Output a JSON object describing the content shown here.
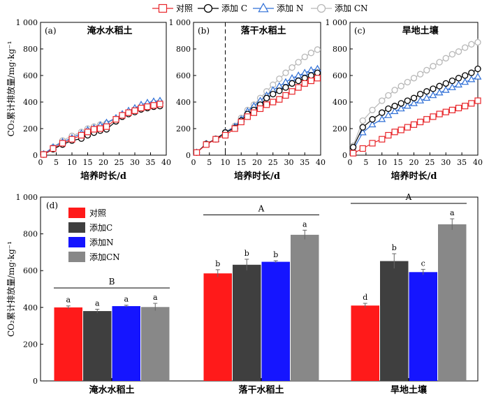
{
  "legend": {
    "entries": [
      {
        "label": "对照",
        "marker": "square",
        "color": "#e8262a"
      },
      {
        "label": "添加 C",
        "marker": "circle",
        "color": "#000000"
      },
      {
        "label": "添加 N",
        "marker": "triangle",
        "color": "#2f6fd6"
      },
      {
        "label": "添加 CN",
        "marker": "circle",
        "color": "#b8b8b8"
      }
    ]
  },
  "chart_data": [
    {
      "type": "line",
      "panel": "(a)",
      "title": "淹水水稻土",
      "xlabel": "培养时长/d",
      "ylabel": "CO₂累计排放量/mg·kg⁻¹",
      "xlim": [
        0,
        40
      ],
      "ylim": [
        0,
        1000
      ],
      "xticks": [
        "0",
        "5",
        "10",
        "15",
        "20",
        "25",
        "30",
        "35",
        "40"
      ],
      "yticks": [
        "0",
        "200",
        "400",
        "600",
        "800",
        "1 000"
      ],
      "x": [
        1,
        4,
        7,
        10,
        13,
        15,
        17,
        19,
        21,
        24,
        26,
        28,
        30,
        32,
        34,
        36,
        38
      ],
      "series": [
        {
          "name": "对照",
          "values": [
            5,
            50,
            90,
            120,
            150,
            175,
            195,
            200,
            215,
            270,
            300,
            320,
            335,
            355,
            365,
            375,
            385
          ]
        },
        {
          "name": "添加 C",
          "values": [
            5,
            45,
            80,
            110,
            125,
            150,
            170,
            185,
            195,
            255,
            290,
            310,
            325,
            345,
            355,
            365,
            370
          ]
        },
        {
          "name": "添加 N",
          "values": [
            8,
            60,
            100,
            130,
            165,
            190,
            205,
            225,
            245,
            280,
            310,
            335,
            355,
            380,
            395,
            405,
            410
          ]
        },
        {
          "name": "添加 CN",
          "values": [
            10,
            60,
            110,
            145,
            175,
            200,
            215,
            230,
            240,
            275,
            300,
            320,
            345,
            365,
            380,
            395,
            400
          ]
        }
      ],
      "grid": false
    },
    {
      "type": "line",
      "panel": "(b)",
      "title": "落干水稻土",
      "xlabel": "培养时长/d",
      "xlim": [
        0,
        40
      ],
      "ylim": [
        0,
        1000
      ],
      "xticks": [
        "0",
        "5",
        "10",
        "15",
        "20",
        "25",
        "30",
        "35",
        "40"
      ],
      "yticks": [
        "0",
        "200",
        "400",
        "600",
        "800",
        "1 000"
      ],
      "vline_x": 10,
      "x": [
        1,
        4,
        7,
        10,
        13,
        15,
        17,
        19,
        21,
        23,
        25,
        27,
        29,
        31,
        33,
        35,
        37,
        39
      ],
      "series": [
        {
          "name": "对照",
          "values": [
            20,
            80,
            120,
            150,
            200,
            250,
            290,
            320,
            350,
            380,
            400,
            420,
            450,
            480,
            510,
            540,
            560,
            580
          ]
        },
        {
          "name": "添加 C",
          "values": [
            20,
            85,
            120,
            170,
            205,
            260,
            310,
            340,
            380,
            430,
            460,
            485,
            510,
            540,
            560,
            580,
            600,
            620
          ]
        },
        {
          "name": "添加 N",
          "values": [
            20,
            85,
            120,
            170,
            215,
            270,
            330,
            370,
            410,
            450,
            490,
            520,
            550,
            580,
            600,
            620,
            640,
            650
          ]
        },
        {
          "name": "添加 CN",
          "values": [
            20,
            85,
            125,
            175,
            220,
            280,
            340,
            380,
            430,
            480,
            530,
            575,
            620,
            660,
            700,
            740,
            770,
            795
          ]
        }
      ],
      "grid": false
    },
    {
      "type": "line",
      "panel": "(c)",
      "title": "旱地土壤",
      "xlabel": "培养时长/d",
      "xlim": [
        0,
        40
      ],
      "ylim": [
        0,
        1000
      ],
      "xticks": [
        "0",
        "5",
        "10",
        "15",
        "20",
        "25",
        "30",
        "35",
        "40"
      ],
      "yticks": [
        "0",
        "200",
        "400",
        "600",
        "800",
        "1 000"
      ],
      "x": [
        1,
        4,
        7,
        10,
        12,
        14,
        16,
        18,
        20,
        22,
        24,
        26,
        28,
        30,
        32,
        34,
        36,
        38,
        40
      ],
      "series": [
        {
          "name": "对照",
          "values": [
            15,
            50,
            90,
            120,
            150,
            175,
            190,
            210,
            230,
            250,
            270,
            290,
            310,
            325,
            340,
            355,
            370,
            390,
            410
          ]
        },
        {
          "name": "添加 C",
          "values": [
            60,
            210,
            270,
            320,
            350,
            370,
            390,
            410,
            430,
            460,
            480,
            500,
            520,
            540,
            560,
            580,
            600,
            620,
            650
          ]
        },
        {
          "name": "添加 N",
          "values": [
            40,
            170,
            230,
            270,
            300,
            330,
            350,
            370,
            390,
            410,
            430,
            450,
            470,
            490,
            510,
            530,
            550,
            570,
            590
          ]
        },
        {
          "name": "添加 CN",
          "values": [
            70,
            260,
            340,
            410,
            450,
            490,
            520,
            550,
            580,
            610,
            640,
            670,
            700,
            730,
            760,
            780,
            810,
            835,
            850
          ]
        }
      ],
      "grid": false
    },
    {
      "type": "bar",
      "panel": "(d)",
      "ylabel": "CO₂累计排放量/mg·kg⁻¹",
      "ylim": [
        0,
        1000
      ],
      "yticks": [
        "0",
        "200",
        "400",
        "600",
        "800",
        "1 000"
      ],
      "categories": [
        "淹水水稻土",
        "落干水稻土",
        "旱地土壤"
      ],
      "group_letters": [
        "B",
        "A",
        "A"
      ],
      "series": [
        {
          "name": "对照",
          "color": "#ff1a1a",
          "values": [
            400,
            585,
            410
          ],
          "errors": [
            8,
            20,
            12
          ],
          "letters": [
            "a",
            "b",
            "d"
          ]
        },
        {
          "name": "添加C",
          "color": "#3f3f3f",
          "values": [
            380,
            632,
            652
          ],
          "errors": [
            10,
            30,
            40
          ],
          "letters": [
            "a",
            "b",
            "b"
          ]
        },
        {
          "name": "添加N",
          "color": "#1515ff",
          "values": [
            407,
            648,
            592
          ],
          "errors": [
            5,
            6,
            15
          ],
          "letters": [
            "a",
            "b",
            "c"
          ]
        },
        {
          "name": "添加CN",
          "color": "#888888",
          "values": [
            402,
            795,
            852
          ],
          "errors": [
            20,
            25,
            30
          ],
          "letters": [
            "a",
            "a",
            "a"
          ]
        }
      ],
      "legend_position": "top-left",
      "grid": false
    }
  ]
}
